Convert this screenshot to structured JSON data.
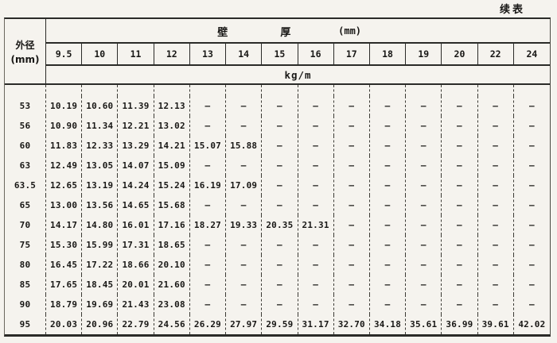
{
  "page": {
    "continued_label": "续表"
  },
  "table": {
    "od_header_line1": "外径",
    "od_header_line2": "(mm)",
    "thickness_header": {
      "char1": "壁",
      "char2": "厚",
      "unit": "(mm)"
    },
    "unit_label": "kg/m",
    "columns": [
      "9.5",
      "10",
      "11",
      "12",
      "13",
      "14",
      "15",
      "16",
      "17",
      "18",
      "19",
      "20",
      "22",
      "24"
    ],
    "rows": [
      {
        "od": "53",
        "values": [
          "10.19",
          "10.60",
          "11.39",
          "12.13",
          "—",
          "—",
          "—",
          "—",
          "—",
          "—",
          "—",
          "—",
          "—",
          "—"
        ]
      },
      {
        "od": "56",
        "values": [
          "10.90",
          "11.34",
          "12.21",
          "13.02",
          "—",
          "—",
          "—",
          "—",
          "—",
          "—",
          "—",
          "—",
          "—",
          "—"
        ]
      },
      {
        "od": "60",
        "values": [
          "11.83",
          "12.33",
          "13.29",
          "14.21",
          "15.07",
          "15.88",
          "—",
          "—",
          "—",
          "—",
          "—",
          "—",
          "—",
          "—"
        ]
      },
      {
        "od": "63",
        "values": [
          "12.49",
          "13.05",
          "14.07",
          "15.09",
          "—",
          "—",
          "—",
          "—",
          "—",
          "—",
          "—",
          "—",
          "—",
          "—"
        ]
      },
      {
        "od": "63.5",
        "values": [
          "12.65",
          "13.19",
          "14.24",
          "15.24",
          "16.19",
          "17.09",
          "—",
          "—",
          "—",
          "—",
          "—",
          "—",
          "—",
          "—"
        ]
      },
      {
        "od": "65",
        "values": [
          "13.00",
          "13.56",
          "14.65",
          "15.68",
          "—",
          "—",
          "—",
          "—",
          "—",
          "—",
          "—",
          "—",
          "—",
          "—"
        ]
      },
      {
        "od": "70",
        "values": [
          "14.17",
          "14.80",
          "16.01",
          "17.16",
          "18.27",
          "19.33",
          "20.35",
          "21.31",
          "—",
          "—",
          "—",
          "—",
          "—",
          "—"
        ]
      },
      {
        "od": "75",
        "values": [
          "15.30",
          "15.99",
          "17.31",
          "18.65",
          "—",
          "—",
          "—",
          "—",
          "—",
          "—",
          "—",
          "—",
          "—",
          "—"
        ]
      },
      {
        "od": "80",
        "values": [
          "16.45",
          "17.22",
          "18.66",
          "20.10",
          "—",
          "—",
          "—",
          "—",
          "—",
          "—",
          "—",
          "—",
          "—",
          "—"
        ]
      },
      {
        "od": "85",
        "values": [
          "17.65",
          "18.45",
          "20.01",
          "21.60",
          "—",
          "—",
          "—",
          "—",
          "—",
          "—",
          "—",
          "—",
          "—",
          "—"
        ]
      },
      {
        "od": "90",
        "values": [
          "18.79",
          "19.69",
          "21.43",
          "23.08",
          "—",
          "—",
          "—",
          "—",
          "—",
          "—",
          "—",
          "—",
          "—",
          "—"
        ]
      },
      {
        "od": "95",
        "values": [
          "20.03",
          "20.96",
          "22.79",
          "24.56",
          "26.29",
          "27.97",
          "29.59",
          "31.17",
          "32.70",
          "34.18",
          "35.61",
          "36.99",
          "39.61",
          "42.02"
        ]
      }
    ]
  },
  "colors": {
    "paper": "#f5f3ee",
    "ink": "#181715",
    "line": "#2b2b28"
  }
}
